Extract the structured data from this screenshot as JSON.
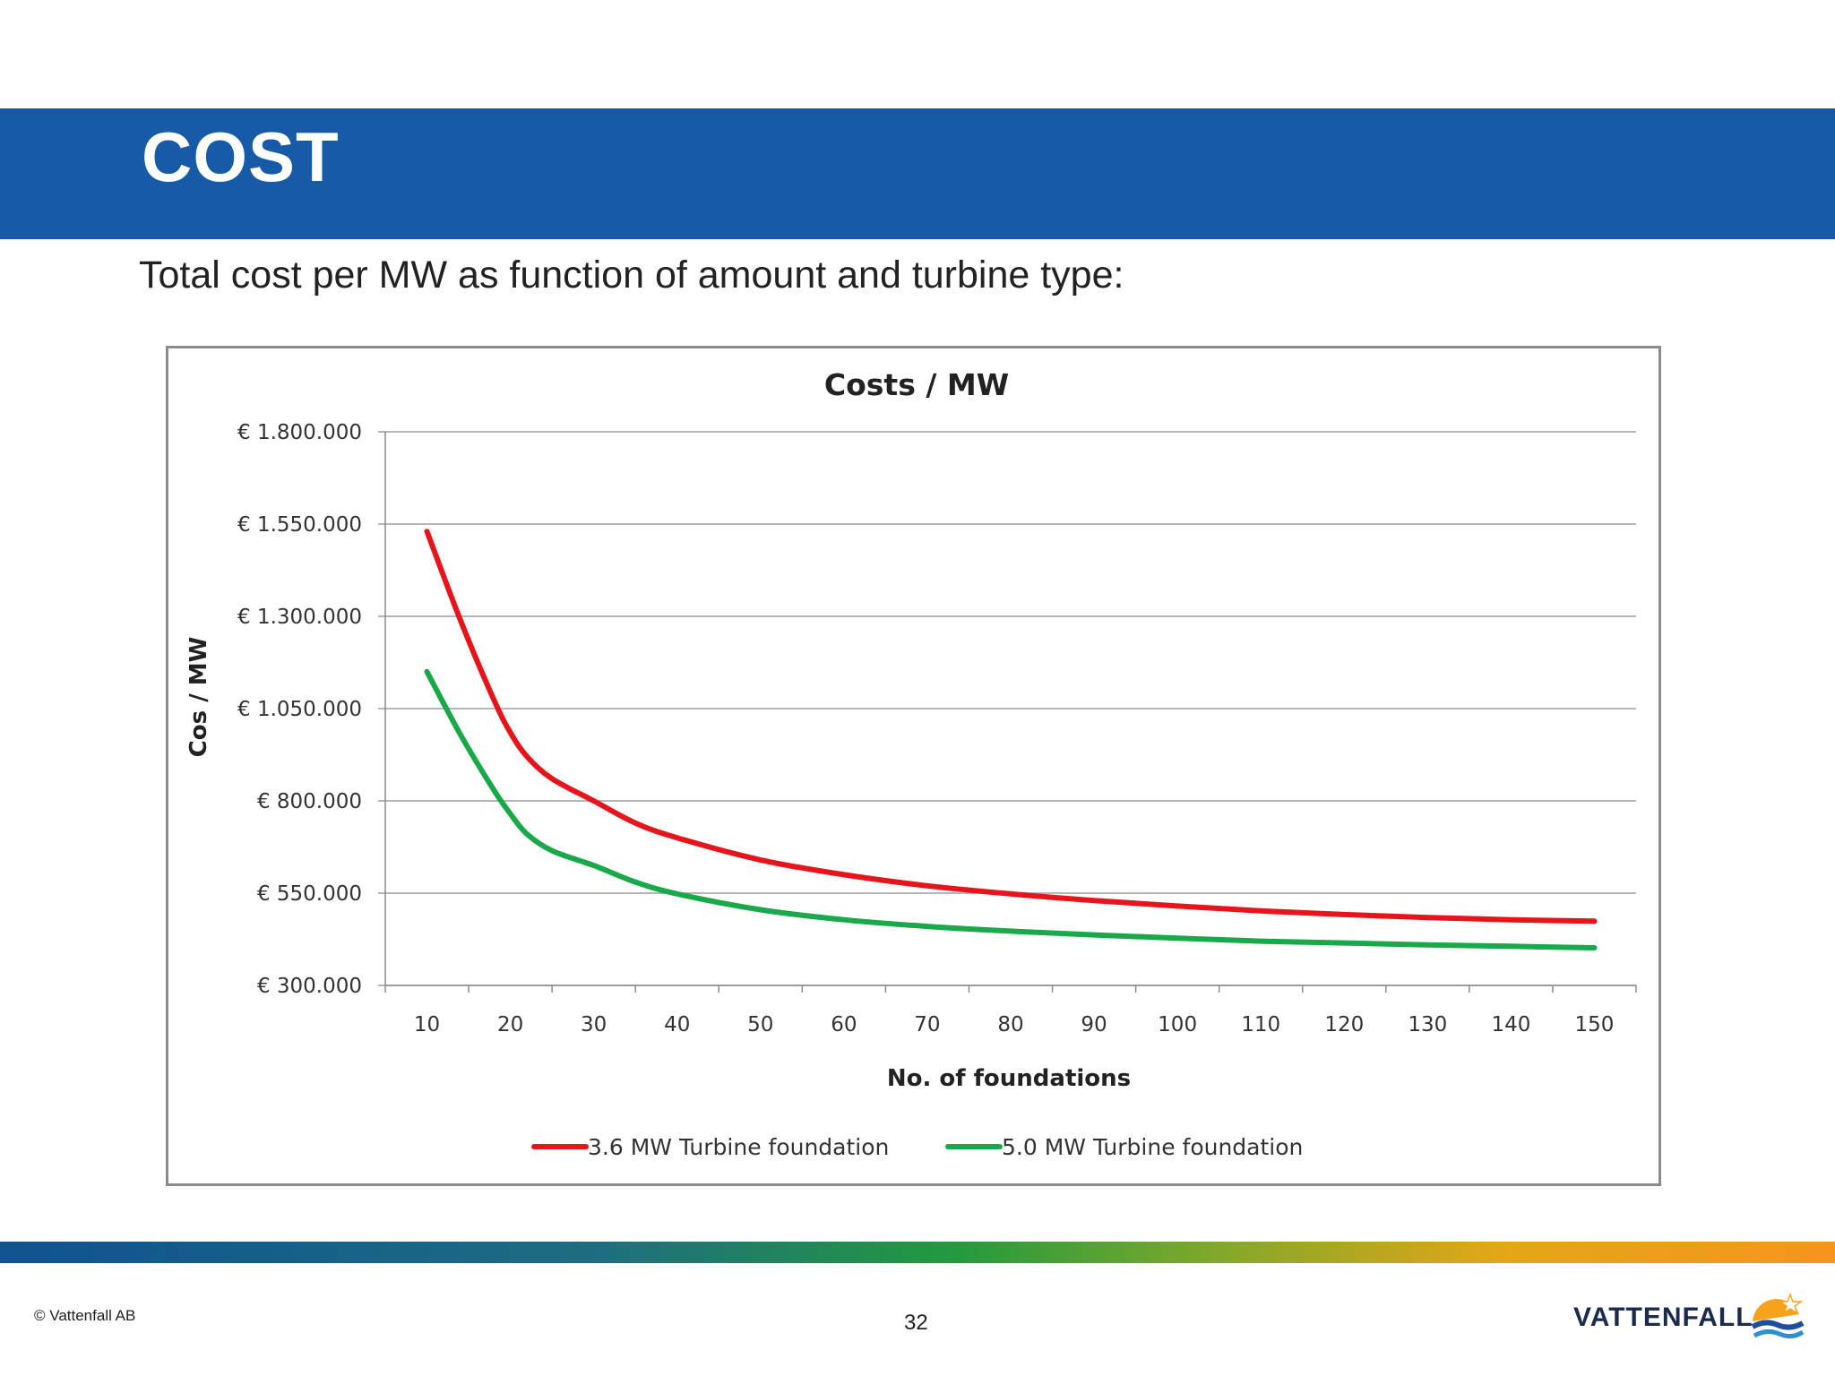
{
  "slide": {
    "title": "COST",
    "subtitle": "Total cost per MW as function of amount and turbine type:",
    "copyright": "© Vattenfall AB",
    "page_number": "32",
    "brand": "VATTENFALL"
  },
  "chart_data": {
    "type": "line",
    "title": "Costs / MW",
    "xlabel": "No. of foundations",
    "ylabel": "Cos / MW",
    "xlim": [
      5,
      155
    ],
    "ylim": [
      300000,
      1800000
    ],
    "x_ticks": [
      "10",
      "20",
      "30",
      "40",
      "50",
      "60",
      "70",
      "80",
      "90",
      "100",
      "110",
      "120",
      "130",
      "140",
      "150"
    ],
    "y_ticks": [
      {
        "value": 300000,
        "label": "€ 300.000"
      },
      {
        "value": 550000,
        "label": "€ 550.000"
      },
      {
        "value": 800000,
        "label": "€ 800.000"
      },
      {
        "value": 1050000,
        "label": "€ 1.050.000"
      },
      {
        "value": 1300000,
        "label": "€ 1.300.000"
      },
      {
        "value": 1550000,
        "label": "€ 1.550.000"
      },
      {
        "value": 1800000,
        "label": "€ 1.800.000"
      }
    ],
    "grid": "horizontal",
    "legend_position": "bottom",
    "x": [
      10,
      14,
      18,
      20,
      22,
      25,
      30,
      35,
      40,
      50,
      60,
      70,
      80,
      90,
      100,
      110,
      120,
      130,
      140,
      150
    ],
    "series": [
      {
        "name": "3.6 MW Turbine foundation",
        "color": "#e8141b",
        "values": [
          1530000,
          1290000,
          1075000,
          985000,
          920000,
          860000,
          800000,
          740000,
          700000,
          640000,
          600000,
          570000,
          548000,
          530000,
          515000,
          502000,
          492000,
          484000,
          478000,
          474000
        ]
      },
      {
        "name": "5.0 MW Turbine foundation",
        "color": "#19a84a",
        "values": [
          1150000,
          980000,
          830000,
          765000,
          710000,
          665000,
          625000,
          580000,
          548000,
          505000,
          478000,
          460000,
          447000,
          437000,
          428000,
          420000,
          415000,
          410000,
          406000,
          402000
        ]
      }
    ]
  }
}
